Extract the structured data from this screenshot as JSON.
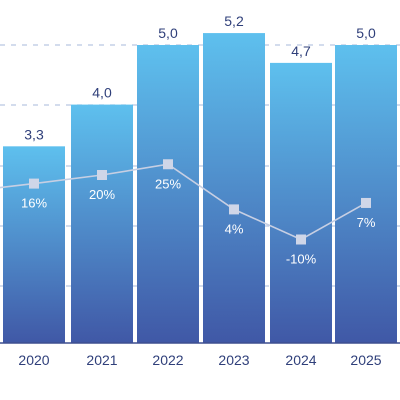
{
  "chart_data": {
    "type": "bar",
    "categories": [
      "2020",
      "2021",
      "2022",
      "2023",
      "2024",
      "2025"
    ],
    "series": [
      {
        "type": "bar",
        "values": [
          3.3,
          4.0,
          5.0,
          5.2,
          4.7,
          5.0
        ],
        "labels": [
          "3,3",
          "4,0",
          "5,0",
          "5,2",
          "4,7",
          "5,0"
        ]
      },
      {
        "type": "line",
        "values": [
          16,
          20,
          25,
          4,
          -10,
          7
        ],
        "labels": [
          "16%",
          "20%",
          "25%",
          "4%",
          "-10%",
          "7%"
        ]
      }
    ],
    "title": "",
    "xlabel": "",
    "ylabel": "",
    "grid": true,
    "colors": {
      "bar_top": "#5ec0ee",
      "bar_bottom": "#4058a6",
      "line": "#c7cfe3",
      "text": "#2f3f7a"
    }
  }
}
